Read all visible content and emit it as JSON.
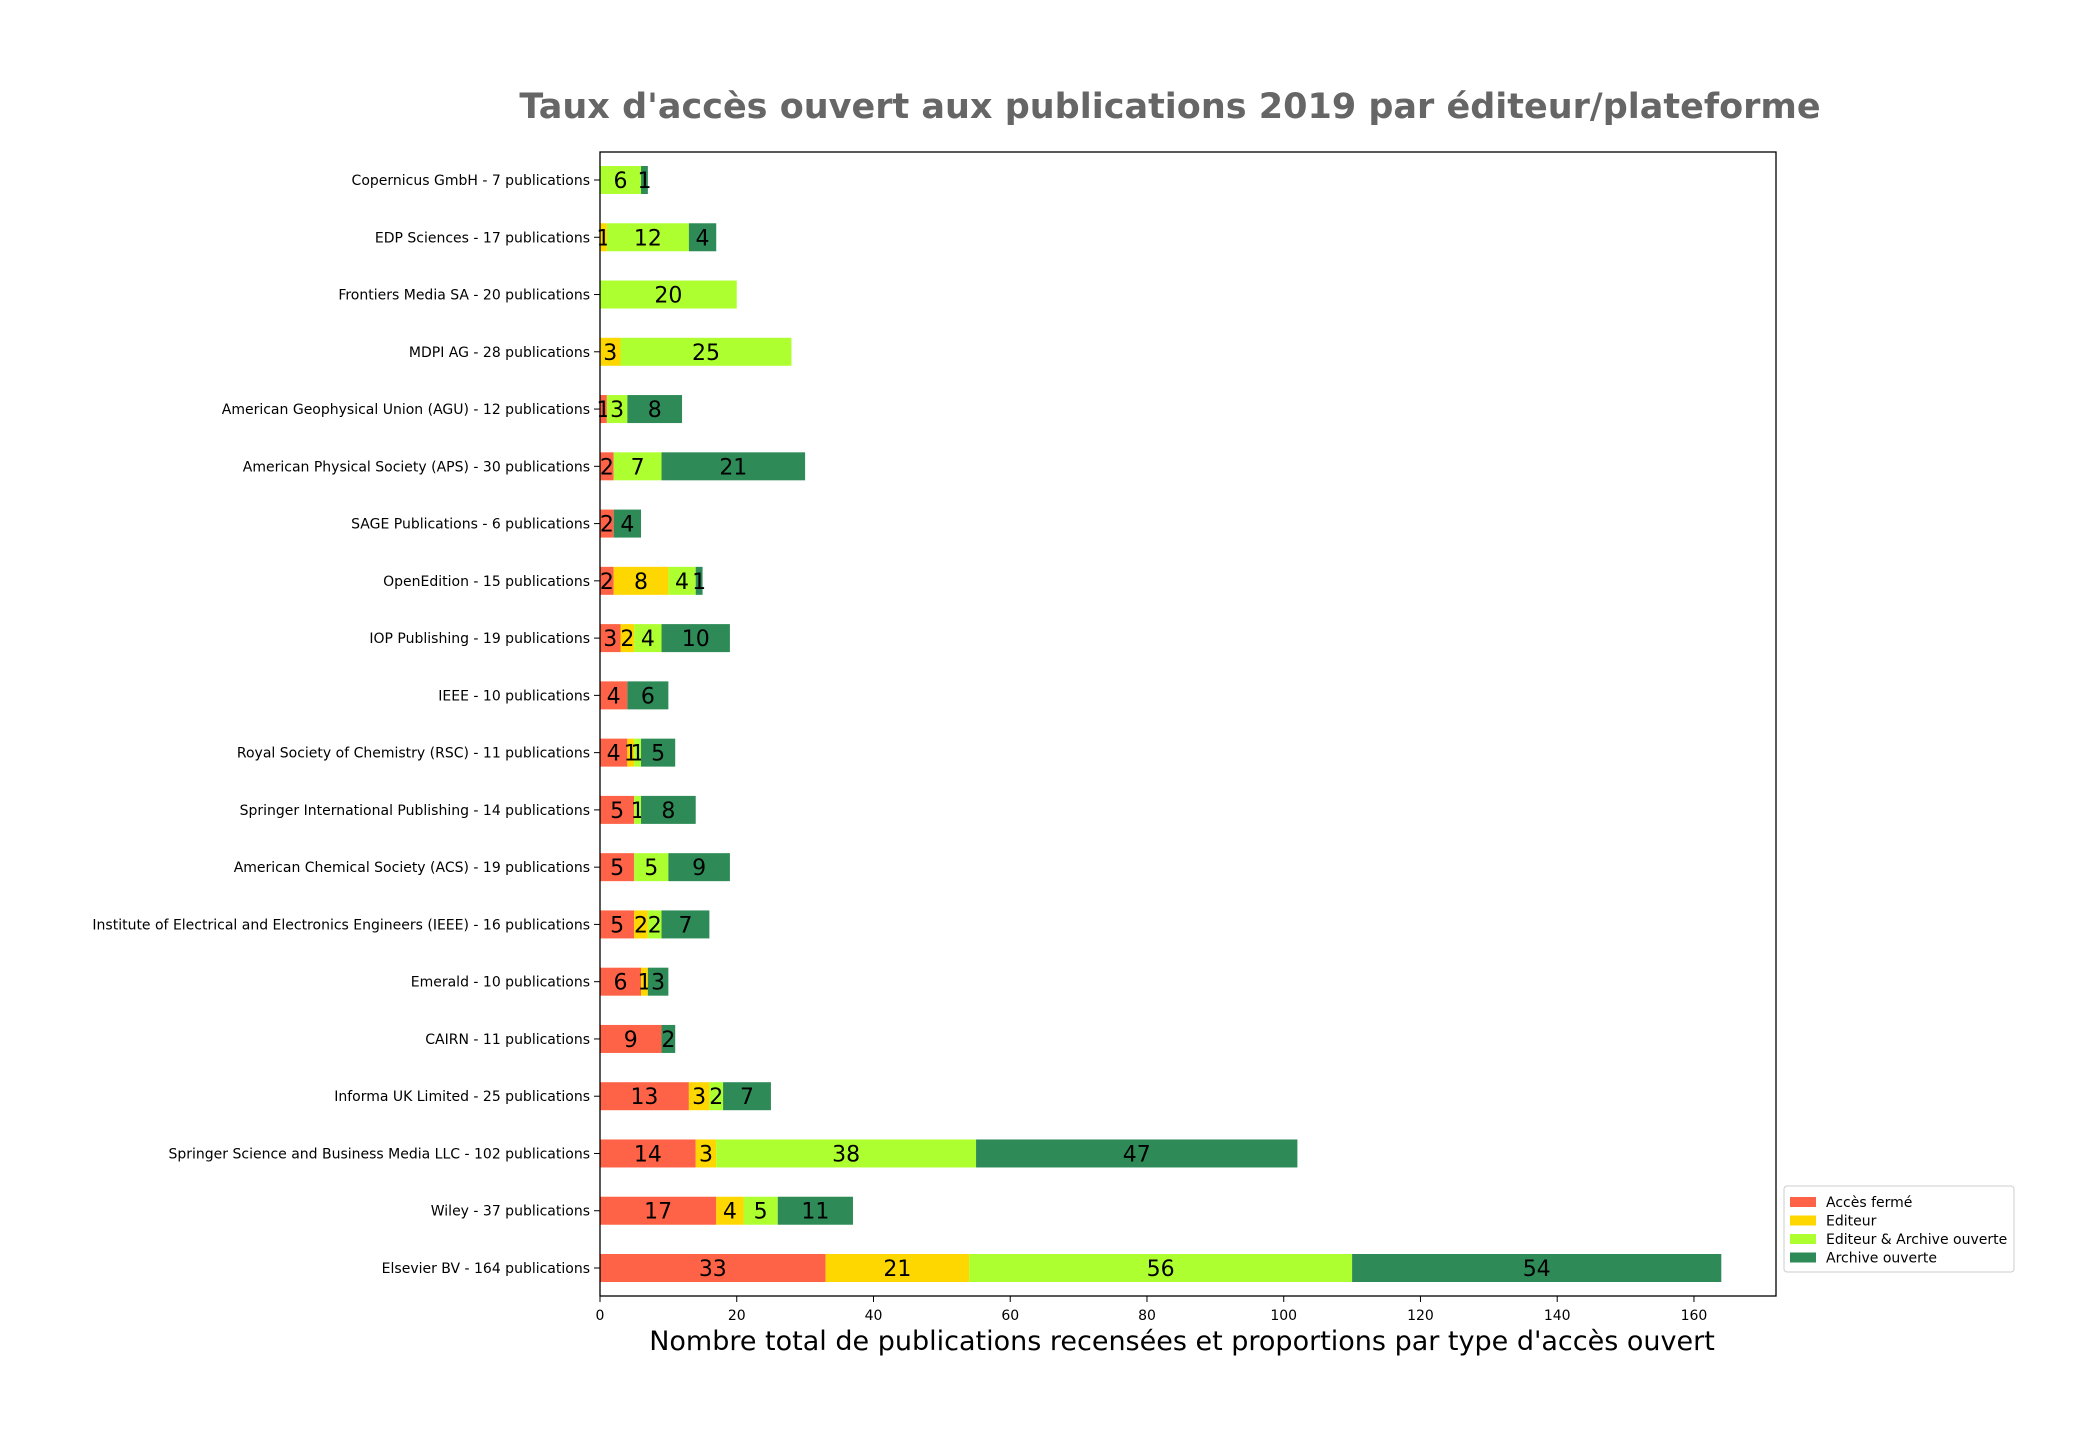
{
  "chart_data": {
    "type": "bar",
    "orientation": "horizontal",
    "stacked": true,
    "title": "Taux d'accès ouvert aux publications 2019 par éditeur/plateforme",
    "xlabel": "Nombre total de publications recensées et proportions par type d'accès ouvert",
    "ylabel": "",
    "xlim": [
      0,
      172
    ],
    "xticks": [
      0,
      20,
      40,
      60,
      80,
      100,
      120,
      140,
      160
    ],
    "grid": false,
    "legend_position": "lower-right",
    "categories": [
      "Copernicus GmbH - 7 publications",
      "EDP Sciences - 17 publications",
      "Frontiers Media SA - 20 publications",
      "MDPI AG - 28 publications",
      "American Geophysical Union (AGU) - 12 publications",
      "American Physical Society (APS) - 30 publications",
      "SAGE Publications - 6 publications",
      "OpenEdition - 15 publications",
      "IOP Publishing - 19 publications",
      "IEEE - 10 publications",
      "Royal Society of Chemistry (RSC) - 11 publications",
      "Springer International Publishing - 14 publications",
      "American Chemical Society (ACS) - 19 publications",
      "Institute of Electrical and Electronics Engineers (IEEE) - 16 publications",
      "Emerald - 10 publications",
      "CAIRN - 11 publications",
      "Informa UK Limited - 25 publications",
      "Springer Science and Business Media LLC - 102 publications",
      "Wiley - 37 publications",
      "Elsevier BV - 164 publications"
    ],
    "series": [
      {
        "name": "Accès fermé",
        "color": "#ff6347",
        "values": [
          0,
          0,
          0,
          0,
          1,
          2,
          2,
          2,
          3,
          4,
          4,
          5,
          5,
          5,
          6,
          9,
          13,
          14,
          17,
          33
        ]
      },
      {
        "name": "Editeur",
        "color": "#ffd700",
        "values": [
          0,
          1,
          0,
          3,
          0,
          0,
          0,
          8,
          2,
          0,
          1,
          0,
          0,
          2,
          1,
          0,
          3,
          3,
          4,
          21
        ]
      },
      {
        "name": "Editeur & Archive ouverte",
        "color": "#adff2f",
        "values": [
          6,
          12,
          20,
          25,
          3,
          7,
          0,
          4,
          4,
          0,
          1,
          1,
          5,
          2,
          0,
          0,
          2,
          38,
          5,
          56
        ]
      },
      {
        "name": "Archive ouverte",
        "color": "#2e8b57",
        "values": [
          1,
          4,
          0,
          0,
          8,
          21,
          4,
          1,
          10,
          6,
          5,
          8,
          9,
          7,
          3,
          2,
          7,
          47,
          11,
          54
        ]
      }
    ]
  }
}
